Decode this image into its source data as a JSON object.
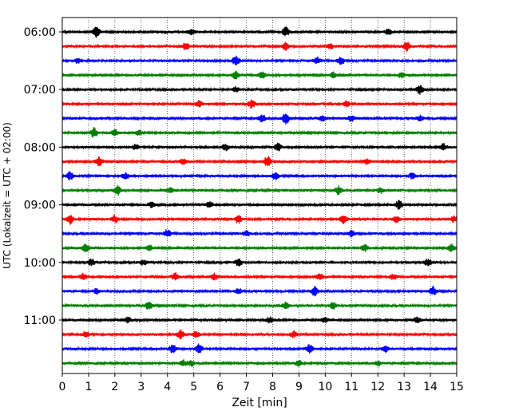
{
  "chart_data": {
    "type": "line",
    "title": "",
    "xlabel": "Zeit  [min]",
    "ylabel": "UTC (Lokalzeit = UTC + 02:00)",
    "xlim": [
      0,
      15
    ],
    "x_ticks": [
      "0",
      "1",
      "2",
      "3",
      "4",
      "5",
      "6",
      "7",
      "8",
      "9",
      "10",
      "11",
      "12",
      "13",
      "14",
      "15"
    ],
    "y_tick_labels": [
      "06:00",
      "07:00",
      "08:00",
      "09:00",
      "10:00",
      "11:00"
    ],
    "rows_per_hour": 4,
    "minutes_per_row": 15,
    "first_row": "06:00",
    "row_count": 24,
    "row_colors": [
      "#000000",
      "#ff0000",
      "#0000ff",
      "#008000"
    ],
    "grid": "vertical dotted lines at each minute",
    "bursts": [
      [
        [
          1.3,
          0.9
        ],
        [
          4.9,
          0.45
        ],
        [
          8.5,
          0.75
        ],
        [
          12.4,
          0.5
        ]
      ],
      [
        [
          4.7,
          0.6
        ],
        [
          8.5,
          0.65
        ],
        [
          10.2,
          0.45
        ],
        [
          13.1,
          0.85
        ]
      ],
      [
        [
          0.6,
          0.45
        ],
        [
          6.6,
          0.8
        ],
        [
          9.7,
          0.6
        ],
        [
          10.6,
          0.7
        ]
      ],
      [
        [
          6.6,
          0.65
        ],
        [
          7.6,
          0.55
        ],
        [
          10.3,
          0.45
        ],
        [
          12.9,
          0.4
        ]
      ],
      [
        [
          6.6,
          0.45
        ],
        [
          13.6,
          0.8
        ]
      ],
      [
        [
          5.2,
          0.55
        ],
        [
          7.2,
          0.75
        ],
        [
          10.8,
          0.45
        ]
      ],
      [
        [
          7.6,
          0.65
        ],
        [
          8.5,
          1.0
        ],
        [
          9.9,
          0.45
        ],
        [
          11.0,
          0.6
        ],
        [
          13.6,
          0.5
        ]
      ],
      [
        [
          1.2,
          0.85
        ],
        [
          2.0,
          0.5
        ],
        [
          2.9,
          0.4
        ]
      ],
      [
        [
          2.8,
          0.45
        ],
        [
          6.2,
          0.55
        ],
        [
          8.2,
          0.65
        ],
        [
          14.5,
          0.6
        ]
      ],
      [
        [
          1.4,
          0.8
        ],
        [
          4.6,
          0.45
        ],
        [
          7.8,
          0.9
        ],
        [
          11.6,
          0.5
        ]
      ],
      [
        [
          0.3,
          0.75
        ],
        [
          2.4,
          0.55
        ],
        [
          8.1,
          0.6
        ],
        [
          13.3,
          0.5
        ]
      ],
      [
        [
          2.1,
          0.8
        ],
        [
          4.1,
          0.45
        ],
        [
          10.5,
          0.75
        ],
        [
          12.1,
          0.45
        ]
      ],
      [
        [
          3.4,
          0.45
        ],
        [
          5.6,
          0.5
        ],
        [
          12.8,
          0.8
        ]
      ],
      [
        [
          0.3,
          0.8
        ],
        [
          2.0,
          0.6
        ],
        [
          6.7,
          0.7
        ],
        [
          10.7,
          0.75
        ],
        [
          12.7,
          0.55
        ],
        [
          14.9,
          0.5
        ]
      ],
      [
        [
          4.0,
          0.7
        ],
        [
          7.0,
          0.45
        ],
        [
          11.0,
          0.5
        ]
      ],
      [
        [
          0.9,
          0.75
        ],
        [
          3.3,
          0.5
        ],
        [
          11.5,
          0.55
        ],
        [
          14.8,
          0.65
        ]
      ],
      [
        [
          1.1,
          0.55
        ],
        [
          3.1,
          0.45
        ],
        [
          6.7,
          0.6
        ],
        [
          13.9,
          0.55
        ]
      ],
      [
        [
          0.8,
          0.5
        ],
        [
          4.3,
          0.65
        ],
        [
          5.8,
          0.5
        ],
        [
          9.8,
          0.45
        ],
        [
          12.6,
          0.45
        ]
      ],
      [
        [
          1.3,
          0.4
        ],
        [
          6.7,
          0.45
        ],
        [
          9.6,
          0.75
        ],
        [
          14.1,
          0.75
        ]
      ],
      [
        [
          3.3,
          0.75
        ],
        [
          8.5,
          0.55
        ],
        [
          10.3,
          0.5
        ]
      ],
      [
        [
          2.5,
          0.45
        ],
        [
          7.9,
          0.5
        ],
        [
          10.0,
          0.45
        ],
        [
          13.5,
          0.5
        ]
      ],
      [
        [
          0.9,
          0.55
        ],
        [
          4.5,
          0.75
        ],
        [
          5.1,
          0.5
        ],
        [
          8.8,
          0.55
        ]
      ],
      [
        [
          4.2,
          0.7
        ],
        [
          5.2,
          0.8
        ],
        [
          9.4,
          0.7
        ],
        [
          12.3,
          0.6
        ]
      ],
      [
        [
          4.6,
          0.55
        ],
        [
          4.9,
          0.45
        ],
        [
          9.0,
          0.5
        ],
        [
          12.0,
          0.4
        ]
      ]
    ]
  }
}
